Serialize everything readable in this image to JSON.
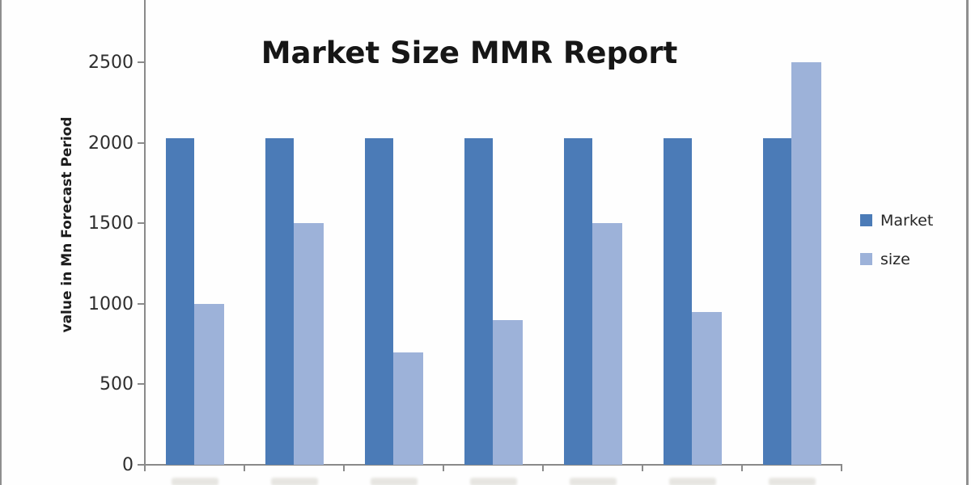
{
  "chart_data": {
    "type": "bar",
    "title": "Market Size MMR Report",
    "xlabel": "",
    "ylabel": "value in Mn  Forecast Period",
    "ylim": [
      0,
      2500
    ],
    "yticks": [
      "0",
      "500",
      "1000",
      "1500",
      "2000",
      "2500"
    ],
    "ytick_values": [
      0,
      500,
      1000,
      1500,
      2000,
      2500
    ],
    "grid": false,
    "legend_position": "right",
    "categories": [
      "",
      "",
      "",
      "",
      "",
      "",
      ""
    ],
    "categories_clipped_at_bottom_edge": true,
    "series": [
      {
        "name": "Market",
        "color": "#4b7bb7",
        "values": [
          2030,
          2030,
          2030,
          2030,
          2030,
          2030,
          2030
        ]
      },
      {
        "name": "size",
        "color": "#9db2d9",
        "values": [
          1000,
          1500,
          700,
          900,
          1500,
          950,
          2500
        ]
      }
    ],
    "axis_color": "#8a8a8a"
  },
  "page": {
    "background": "#fefefe",
    "edge_border_color": "#8f8f8f"
  }
}
